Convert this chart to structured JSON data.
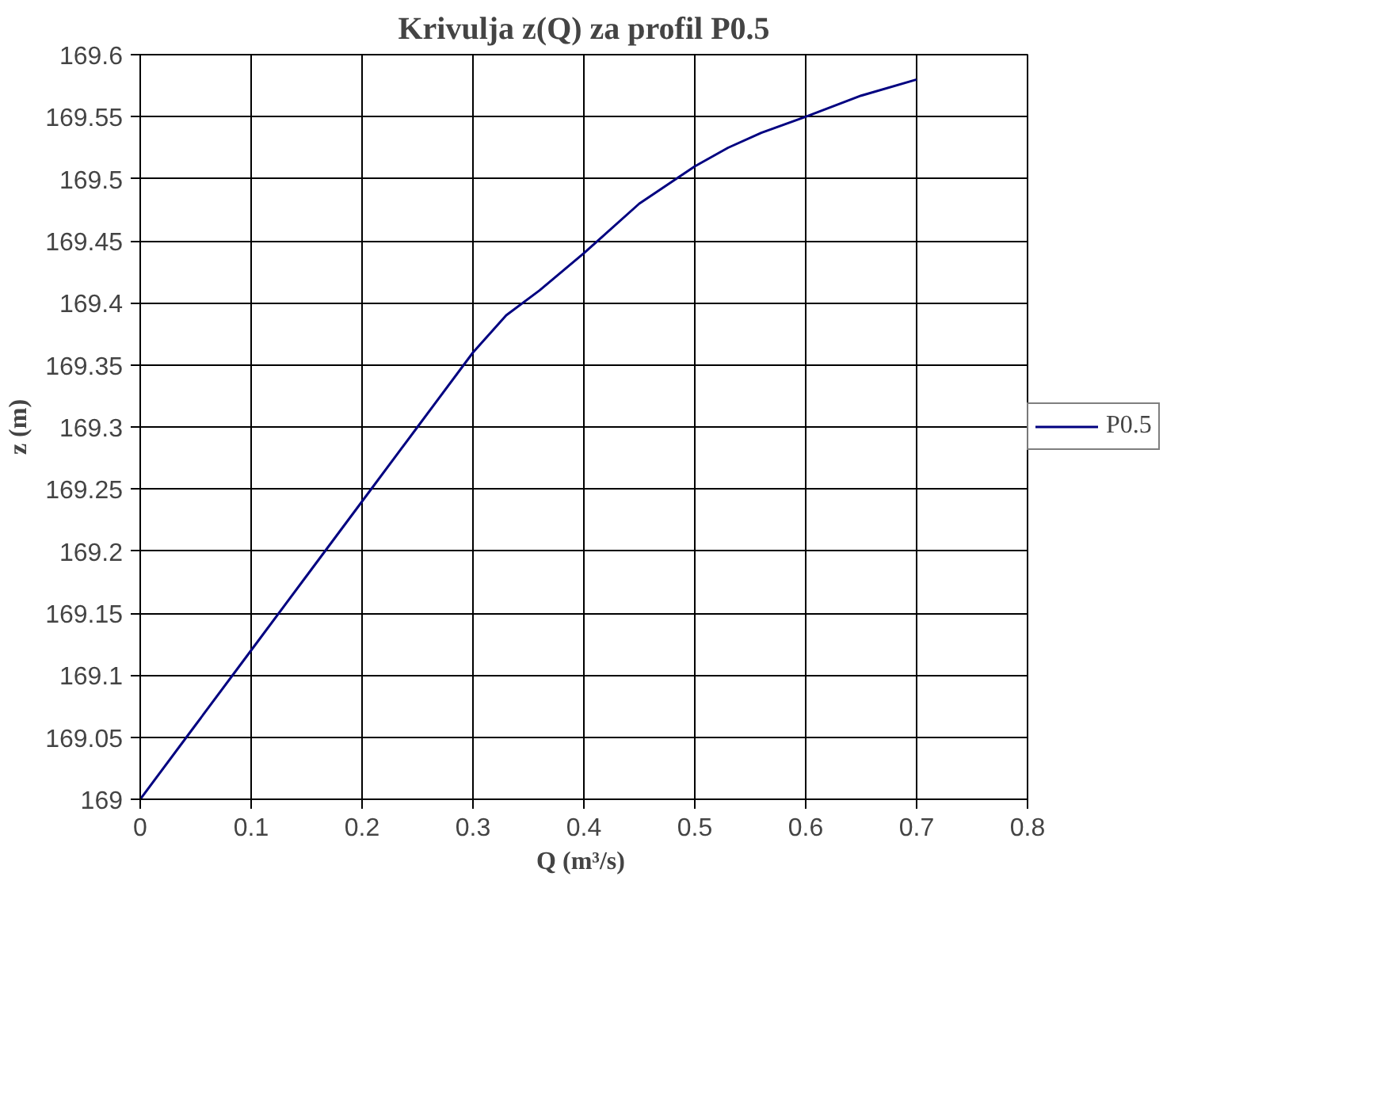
{
  "chart_data": {
    "type": "line",
    "title": "Krivulja z(Q) za profil P0.5",
    "xlabel": "Q  (m³/s)",
    "ylabel": "z (m)",
    "x": [
      0,
      0.05,
      0.1,
      0.15,
      0.2,
      0.25,
      0.3,
      0.33,
      0.36,
      0.4,
      0.45,
      0.5,
      0.53,
      0.56,
      0.6,
      0.65,
      0.7
    ],
    "series": [
      {
        "name": "P0.5",
        "color": "#000080",
        "values": [
          169,
          169.06,
          169.12,
          169.18,
          169.24,
          169.3,
          169.36,
          169.39,
          169.41,
          169.44,
          169.48,
          169.51,
          169.525,
          169.537,
          169.55,
          169.567,
          169.58
        ]
      }
    ],
    "xlim": [
      0,
      0.8
    ],
    "xticks": [
      0,
      0.1,
      0.2,
      0.3,
      0.4,
      0.5,
      0.6,
      0.7,
      0.8
    ],
    "ylim": [
      169,
      169.6
    ],
    "yticks": [
      169,
      169.05,
      169.1,
      169.15,
      169.2,
      169.25,
      169.3,
      169.35,
      169.4,
      169.45,
      169.5,
      169.55,
      169.6
    ],
    "grid": true,
    "legend": "right",
    "marker": "none",
    "line_style": "solid"
  }
}
